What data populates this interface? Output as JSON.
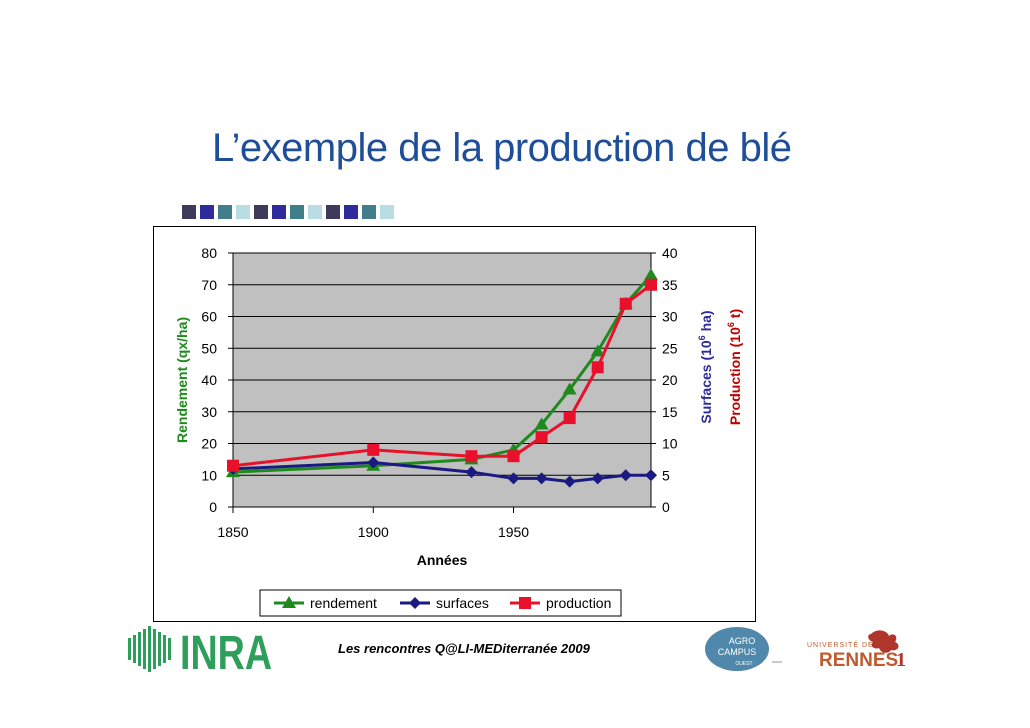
{
  "slide": {
    "title": "L’exemple de la production de blé",
    "footer": "Les rencontres Q@LI-MEDiterranée 2009",
    "deco_colors": [
      "#3d3a5c",
      "#2e2c9a",
      "#3f7e8a",
      "#b8dde3",
      "#3d3a5c",
      "#2e2c9a",
      "#3f7e8a",
      "#b8dde3",
      "#3d3a5c",
      "#2e2c9a",
      "#3f7e8a",
      "#b8dde3"
    ]
  },
  "logos": {
    "inra": "INRA",
    "agro_line1": "AGRO",
    "agro_line2": "CAMPUS",
    "agro_line3": "OUEST",
    "rennes_line1": "UNIVERSITÉ DE",
    "rennes_line2": "RENNES",
    "rennes_num": "1"
  },
  "chart_data": {
    "type": "line",
    "title": "",
    "xlabel": "Années",
    "ylabel_left": "Rendement (qx/ha)",
    "ylabel_right1_pre": "Surfaces (10",
    "ylabel_right1_sup": "6",
    "ylabel_right1_post": " ha)",
    "ylabel_right2_pre": "Production (10",
    "ylabel_right2_sup": "6",
    "ylabel_right2_post": " t)",
    "xlim": [
      1850,
      1999
    ],
    "ylim_left": [
      0,
      80
    ],
    "ylim_right": [
      0,
      40
    ],
    "x_ticks": [
      "1850",
      "1900",
      "1950"
    ],
    "y_ticks_left": [
      "0",
      "10",
      "20",
      "30",
      "40",
      "50",
      "60",
      "70",
      "80"
    ],
    "y_ticks_right": [
      "0",
      "5",
      "10",
      "15",
      "20",
      "25",
      "30",
      "35",
      "40"
    ],
    "grid": true,
    "plot_background": "#c0c0c0",
    "legend_position": "bottom",
    "series": [
      {
        "name": "rendement",
        "axis": "left",
        "color": "#1e8a1e",
        "marker": "triangle",
        "x": [
          1850,
          1900,
          1935,
          1950,
          1960,
          1970,
          1980,
          1990,
          1999
        ],
        "values": [
          11,
          13,
          15,
          18,
          26,
          37,
          49,
          64,
          73
        ]
      },
      {
        "name": "surfaces",
        "axis": "right",
        "color": "#1a1a80",
        "marker": "diamond",
        "x": [
          1850,
          1900,
          1935,
          1950,
          1960,
          1970,
          1980,
          1990,
          1999
        ],
        "values": [
          6,
          7,
          5.5,
          4.5,
          4.5,
          4,
          4.5,
          5,
          5
        ]
      },
      {
        "name": "production",
        "axis": "right",
        "color": "#e8102a",
        "marker": "square",
        "x": [
          1850,
          1900,
          1935,
          1950,
          1960,
          1970,
          1980,
          1990,
          1999
        ],
        "values": [
          6.5,
          9,
          8,
          8,
          11,
          14,
          22,
          32,
          35
        ]
      }
    ]
  }
}
